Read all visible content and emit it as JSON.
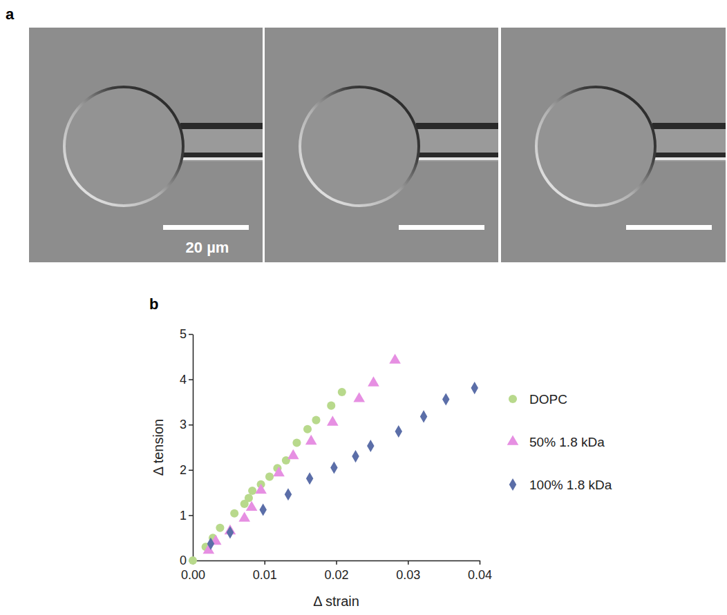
{
  "panels": {
    "a": {
      "label": "a",
      "scale_bar_label": "20 µm"
    },
    "b": {
      "label": "b"
    }
  },
  "chart_data": {
    "type": "scatter",
    "x_label": "Δ strain",
    "y_label": "Δ tension",
    "xlim": [
      0,
      0.04
    ],
    "ylim": [
      0,
      5
    ],
    "xticks": [
      {
        "value": 0,
        "label": "0.00"
      },
      {
        "value": 0.01,
        "label": "0.01"
      },
      {
        "value": 0.02,
        "label": "0.02"
      },
      {
        "value": 0.03,
        "label": "0.03"
      },
      {
        "value": 0.04,
        "label": "0.04"
      }
    ],
    "yticks": [
      0,
      1,
      2,
      3,
      4,
      5
    ],
    "legend": "right",
    "grid": false,
    "series": [
      {
        "name": "DOPC",
        "color": "#b8d98c",
        "marker": "circle",
        "x": [
          0,
          0.0018,
          0.0028,
          0.0038,
          0.0058,
          0.0072,
          0.0078,
          0.0083,
          0.0095,
          0.0107,
          0.0118,
          0.013,
          0.0145,
          0.016,
          0.0172,
          0.0193,
          0.0208
        ],
        "values": [
          0,
          0.3,
          0.5,
          0.72,
          1.04,
          1.25,
          1.38,
          1.54,
          1.68,
          1.85,
          2.04,
          2.21,
          2.6,
          2.9,
          3.1,
          3.42,
          3.72
        ]
      },
      {
        "name": "50% 1.8 kDa",
        "color": "#e68fe2",
        "marker": "triangle",
        "x": [
          0.0022,
          0.0032,
          0.0052,
          0.0072,
          0.0082,
          0.0095,
          0.012,
          0.014,
          0.0165,
          0.0195,
          0.0232,
          0.0252,
          0.0282
        ],
        "values": [
          0.22,
          0.42,
          0.65,
          0.93,
          1.17,
          1.55,
          1.93,
          2.31,
          2.63,
          3.05,
          3.57,
          3.92,
          4.42
        ]
      },
      {
        "name": "100% 1.8 kDa",
        "color": "#5b6ea8",
        "marker": "diamond",
        "x": [
          0.0025,
          0.0052,
          0.0098,
          0.0133,
          0.0163,
          0.0197,
          0.0227,
          0.0248,
          0.0287,
          0.0322,
          0.0353,
          0.0393
        ],
        "values": [
          0.37,
          0.62,
          1.12,
          1.46,
          1.81,
          2.05,
          2.3,
          2.53,
          2.85,
          3.18,
          3.56,
          3.81
        ]
      }
    ]
  }
}
